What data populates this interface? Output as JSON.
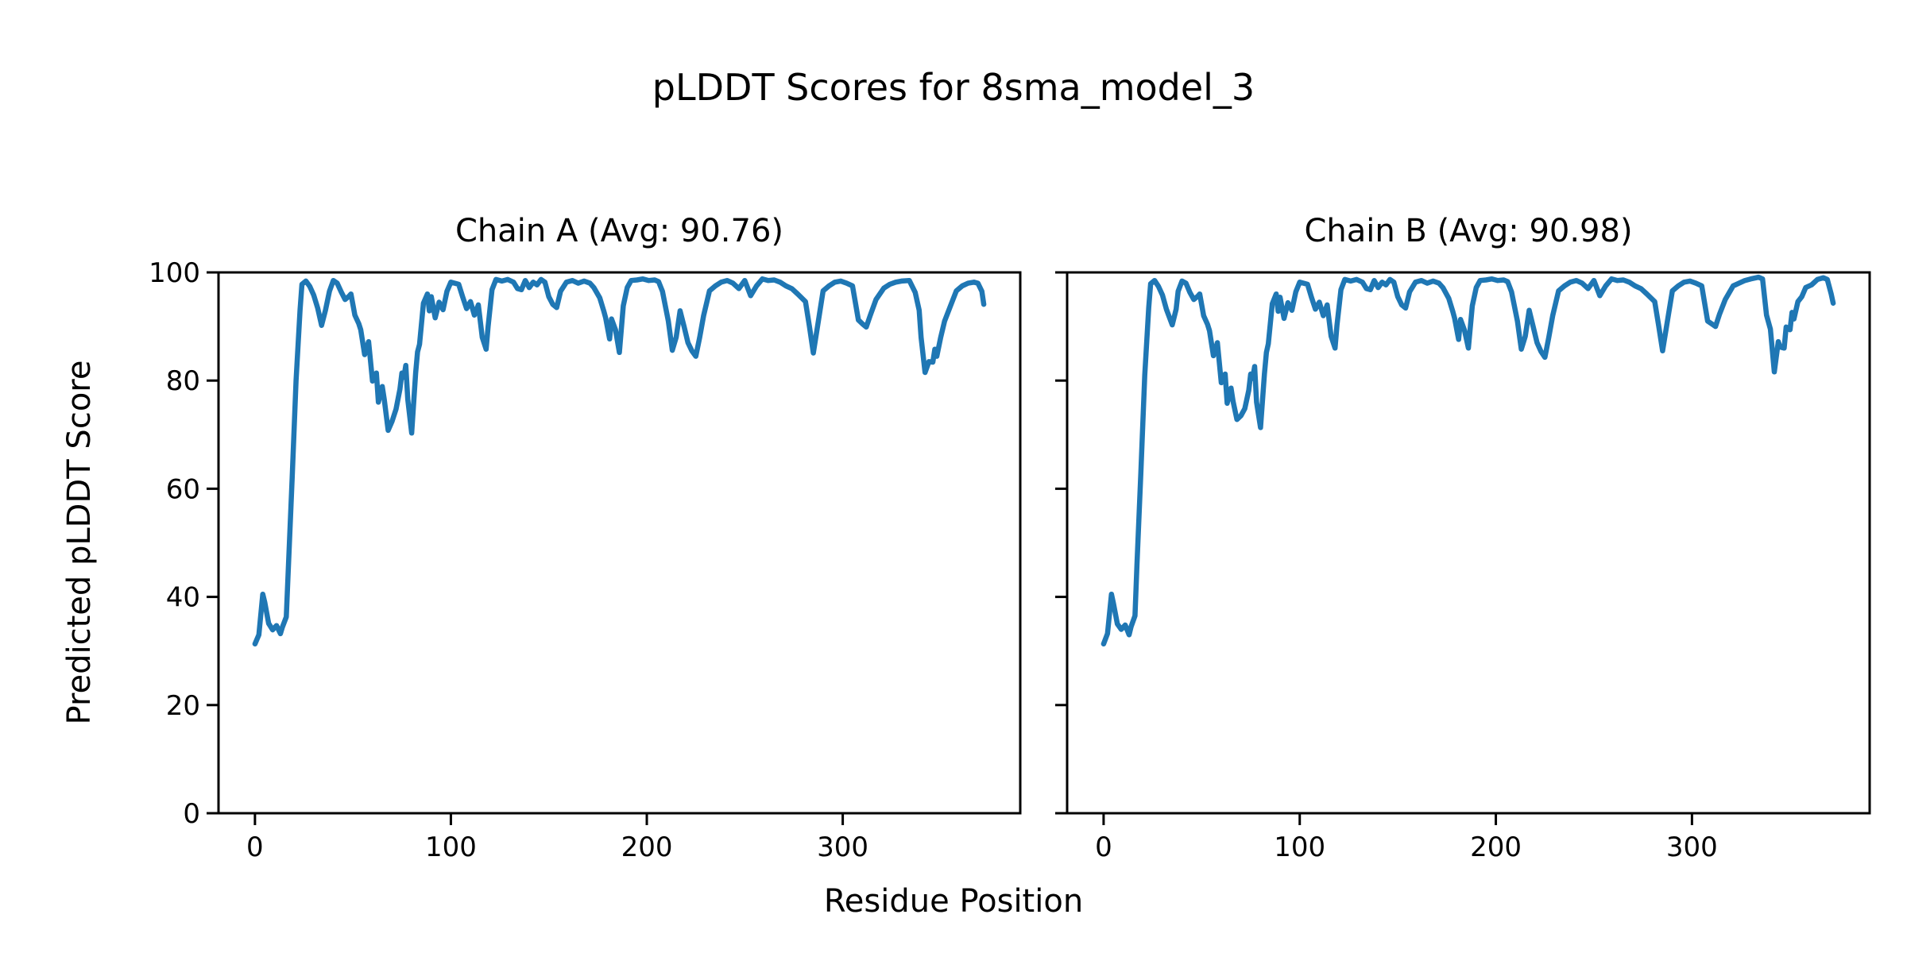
{
  "figure": {
    "suptitle": "pLDDT Scores for 8sma_model_3",
    "xlabel": "Residue Position",
    "ylabel": "Predicted pLDDT Score",
    "background_color": "#ffffff",
    "text_color": "#000000",
    "axis_color": "#000000"
  },
  "chart_data": [
    {
      "type": "line",
      "chain": "A",
      "title": "Chain A (Avg: 90.76)",
      "average_plddt": 90.76,
      "line_color": "#1f77b4",
      "xlabel": "Residue Position",
      "ylabel": "Predicted pLDDT Score",
      "xlim": [
        -18.6,
        390.6
      ],
      "ylim": [
        0,
        100
      ],
      "xticks": [
        0,
        100,
        200,
        300
      ],
      "yticks": [
        0,
        20,
        40,
        60,
        80,
        100
      ],
      "show_ytick_labels": true,
      "grid": false,
      "legend": false,
      "points": [
        [
          0,
          31.3
        ],
        [
          2,
          33.0
        ],
        [
          4,
          40.5
        ],
        [
          5,
          39.0
        ],
        [
          7,
          35.1
        ],
        [
          9,
          33.9
        ],
        [
          11,
          34.7
        ],
        [
          13,
          33.2
        ],
        [
          14,
          34.4
        ],
        [
          16,
          36.3
        ],
        [
          17,
          45.0
        ],
        [
          19,
          62.0
        ],
        [
          21,
          80.0
        ],
        [
          23,
          93.0
        ],
        [
          24,
          97.8
        ],
        [
          26,
          98.4
        ],
        [
          28,
          97.4
        ],
        [
          30,
          95.8
        ],
        [
          32,
          93.4
        ],
        [
          34,
          90.2
        ],
        [
          36,
          93.0
        ],
        [
          38,
          96.5
        ],
        [
          40,
          98.5
        ],
        [
          42,
          98.0
        ],
        [
          44,
          96.4
        ],
        [
          46,
          95.0
        ],
        [
          48,
          95.6
        ],
        [
          49,
          96.0
        ],
        [
          51,
          92.1
        ],
        [
          53,
          90.5
        ],
        [
          54,
          89.4
        ],
        [
          56,
          84.8
        ],
        [
          58,
          87.2
        ],
        [
          60,
          79.9
        ],
        [
          62,
          81.4
        ],
        [
          63,
          76.0
        ],
        [
          65,
          78.9
        ],
        [
          66,
          76.5
        ],
        [
          68,
          70.8
        ],
        [
          70,
          72.5
        ],
        [
          72,
          74.7
        ],
        [
          74,
          78.4
        ],
        [
          75,
          81.4
        ],
        [
          76,
          80.6
        ],
        [
          77,
          82.8
        ],
        [
          78,
          76.5
        ],
        [
          80,
          70.3
        ],
        [
          82,
          81.4
        ],
        [
          83,
          85.3
        ],
        [
          84,
          86.7
        ],
        [
          86,
          94.3
        ],
        [
          88,
          96.0
        ],
        [
          89,
          92.9
        ],
        [
          90,
          95.5
        ],
        [
          92,
          91.6
        ],
        [
          94,
          94.5
        ],
        [
          96,
          93.1
        ],
        [
          98,
          96.5
        ],
        [
          100,
          98.2
        ],
        [
          102,
          98.0
        ],
        [
          104,
          97.8
        ],
        [
          106,
          95.5
        ],
        [
          108,
          93.3
        ],
        [
          110,
          94.6
        ],
        [
          112,
          92.1
        ],
        [
          114,
          94.0
        ],
        [
          116,
          88.0
        ],
        [
          118,
          85.8
        ],
        [
          119,
          90.0
        ],
        [
          121,
          96.8
        ],
        [
          123,
          98.7
        ],
        [
          126,
          98.4
        ],
        [
          129,
          98.7
        ],
        [
          132,
          98.2
        ],
        [
          134,
          97.0
        ],
        [
          136,
          96.8
        ],
        [
          138,
          98.5
        ],
        [
          140,
          97.2
        ],
        [
          142,
          98.2
        ],
        [
          144,
          97.7
        ],
        [
          146,
          98.7
        ],
        [
          148,
          98.2
        ],
        [
          150,
          95.5
        ],
        [
          152,
          94.1
        ],
        [
          154,
          93.5
        ],
        [
          156,
          96.5
        ],
        [
          159,
          98.2
        ],
        [
          162,
          98.5
        ],
        [
          165,
          98.0
        ],
        [
          168,
          98.4
        ],
        [
          171,
          98.0
        ],
        [
          173,
          97.2
        ],
        [
          176,
          95.3
        ],
        [
          178,
          92.9
        ],
        [
          179,
          91.6
        ],
        [
          181,
          87.7
        ],
        [
          182,
          91.4
        ],
        [
          184,
          89.4
        ],
        [
          186,
          85.2
        ],
        [
          188,
          93.8
        ],
        [
          190,
          97.2
        ],
        [
          192,
          98.5
        ],
        [
          195,
          98.6
        ],
        [
          198,
          98.8
        ],
        [
          201,
          98.5
        ],
        [
          204,
          98.6
        ],
        [
          206,
          98.3
        ],
        [
          208,
          96.5
        ],
        [
          211,
          91.0
        ],
        [
          213,
          85.6
        ],
        [
          215,
          88.0
        ],
        [
          217,
          92.9
        ],
        [
          219,
          90.0
        ],
        [
          221,
          87.0
        ],
        [
          223,
          85.5
        ],
        [
          225,
          84.5
        ],
        [
          227,
          88.0
        ],
        [
          229,
          92.0
        ],
        [
          232,
          96.6
        ],
        [
          235,
          97.5
        ],
        [
          238,
          98.2
        ],
        [
          241,
          98.5
        ],
        [
          244,
          98.0
        ],
        [
          247,
          97.0
        ],
        [
          250,
          98.5
        ],
        [
          253,
          95.7
        ],
        [
          256,
          97.5
        ],
        [
          259,
          98.8
        ],
        [
          262,
          98.5
        ],
        [
          265,
          98.6
        ],
        [
          268,
          98.2
        ],
        [
          271,
          97.5
        ],
        [
          274,
          97.0
        ],
        [
          277,
          96.0
        ],
        [
          281,
          94.6
        ],
        [
          283,
          90.0
        ],
        [
          285,
          85.1
        ],
        [
          288,
          92.0
        ],
        [
          290,
          96.6
        ],
        [
          293,
          97.5
        ],
        [
          296,
          98.2
        ],
        [
          299,
          98.4
        ],
        [
          302,
          98.0
        ],
        [
          305,
          97.5
        ],
        [
          308,
          91.2
        ],
        [
          310,
          90.5
        ],
        [
          312,
          89.9
        ],
        [
          314,
          92.0
        ],
        [
          317,
          95.0
        ],
        [
          321,
          97.1
        ],
        [
          324,
          97.8
        ],
        [
          327,
          98.2
        ],
        [
          330,
          98.4
        ],
        [
          334,
          98.5
        ],
        [
          337,
          96.3
        ],
        [
          339,
          93.0
        ],
        [
          340,
          88.0
        ],
        [
          342,
          81.5
        ],
        [
          344,
          83.5
        ],
        [
          346,
          83.4
        ],
        [
          347,
          85.8
        ],
        [
          348,
          84.5
        ],
        [
          350,
          88.0
        ],
        [
          352,
          91.0
        ],
        [
          355,
          93.8
        ],
        [
          358,
          96.6
        ],
        [
          361,
          97.5
        ],
        [
          364,
          98.0
        ],
        [
          367,
          98.2
        ],
        [
          369,
          98.0
        ],
        [
          371,
          96.5
        ],
        [
          372,
          94.1
        ]
      ]
    },
    {
      "type": "line",
      "chain": "B",
      "title": "Chain B (Avg: 90.98)",
      "average_plddt": 90.98,
      "line_color": "#1f77b4",
      "xlabel": "Residue Position",
      "ylabel": "Predicted pLDDT Score",
      "xlim": [
        -18.6,
        390.6
      ],
      "ylim": [
        0,
        100
      ],
      "xticks": [
        0,
        100,
        200,
        300
      ],
      "yticks": [
        0,
        20,
        40,
        60,
        80,
        100
      ],
      "show_ytick_labels": false,
      "grid": false,
      "legend": false,
      "points": [
        [
          0,
          31.3
        ],
        [
          2,
          33.2
        ],
        [
          4,
          40.5
        ],
        [
          5,
          38.8
        ],
        [
          7,
          35.0
        ],
        [
          9,
          34.0
        ],
        [
          11,
          34.8
        ],
        [
          13,
          33.0
        ],
        [
          14,
          34.5
        ],
        [
          16,
          36.5
        ],
        [
          17,
          46.0
        ],
        [
          19,
          63.0
        ],
        [
          21,
          81.0
        ],
        [
          23,
          93.5
        ],
        [
          24,
          97.9
        ],
        [
          26,
          98.5
        ],
        [
          28,
          97.4
        ],
        [
          30,
          95.8
        ],
        [
          32,
          93.2
        ],
        [
          35,
          90.3
        ],
        [
          37,
          93.2
        ],
        [
          38,
          96.5
        ],
        [
          40,
          98.4
        ],
        [
          42,
          98.0
        ],
        [
          44,
          96.3
        ],
        [
          46,
          95.0
        ],
        [
          48,
          95.6
        ],
        [
          49,
          96.0
        ],
        [
          51,
          92.0
        ],
        [
          53,
          90.4
        ],
        [
          54,
          89.2
        ],
        [
          56,
          84.6
        ],
        [
          58,
          87.0
        ],
        [
          60,
          79.6
        ],
        [
          62,
          81.2
        ],
        [
          63,
          75.8
        ],
        [
          65,
          78.6
        ],
        [
          66,
          76.2
        ],
        [
          68,
          72.8
        ],
        [
          70,
          73.5
        ],
        [
          72,
          74.8
        ],
        [
          74,
          78.2
        ],
        [
          75,
          81.2
        ],
        [
          76,
          80.4
        ],
        [
          77,
          82.6
        ],
        [
          78,
          76.0
        ],
        [
          80,
          71.3
        ],
        [
          82,
          81.2
        ],
        [
          83,
          85.2
        ],
        [
          84,
          86.8
        ],
        [
          86,
          94.2
        ],
        [
          88,
          96.0
        ],
        [
          89,
          92.8
        ],
        [
          90,
          95.4
        ],
        [
          92,
          91.5
        ],
        [
          94,
          94.4
        ],
        [
          96,
          93.0
        ],
        [
          98,
          96.4
        ],
        [
          100,
          98.2
        ],
        [
          102,
          98.0
        ],
        [
          104,
          97.8
        ],
        [
          106,
          95.4
        ],
        [
          108,
          93.2
        ],
        [
          110,
          94.5
        ],
        [
          112,
          92.0
        ],
        [
          114,
          94.0
        ],
        [
          116,
          88.2
        ],
        [
          118,
          86.0
        ],
        [
          119,
          90.2
        ],
        [
          121,
          96.8
        ],
        [
          123,
          98.7
        ],
        [
          126,
          98.4
        ],
        [
          129,
          98.7
        ],
        [
          132,
          98.2
        ],
        [
          134,
          97.0
        ],
        [
          136,
          96.8
        ],
        [
          138,
          98.5
        ],
        [
          140,
          97.2
        ],
        [
          142,
          98.2
        ],
        [
          144,
          97.7
        ],
        [
          146,
          98.7
        ],
        [
          148,
          98.2
        ],
        [
          150,
          95.5
        ],
        [
          152,
          94.0
        ],
        [
          154,
          93.4
        ],
        [
          156,
          96.4
        ],
        [
          159,
          98.2
        ],
        [
          162,
          98.5
        ],
        [
          165,
          98.0
        ],
        [
          168,
          98.4
        ],
        [
          171,
          98.0
        ],
        [
          173,
          97.2
        ],
        [
          176,
          95.2
        ],
        [
          178,
          92.8
        ],
        [
          179,
          91.5
        ],
        [
          181,
          87.6
        ],
        [
          182,
          91.3
        ],
        [
          184,
          89.3
        ],
        [
          186,
          86.0
        ],
        [
          188,
          93.8
        ],
        [
          190,
          97.2
        ],
        [
          192,
          98.5
        ],
        [
          195,
          98.6
        ],
        [
          198,
          98.8
        ],
        [
          201,
          98.5
        ],
        [
          204,
          98.6
        ],
        [
          206,
          98.3
        ],
        [
          208,
          96.4
        ],
        [
          211,
          91.0
        ],
        [
          213,
          85.8
        ],
        [
          215,
          88.2
        ],
        [
          217,
          93.0
        ],
        [
          219,
          90.0
        ],
        [
          221,
          87.0
        ],
        [
          223,
          85.4
        ],
        [
          225,
          84.3
        ],
        [
          227,
          88.0
        ],
        [
          229,
          92.0
        ],
        [
          232,
          96.6
        ],
        [
          235,
          97.5
        ],
        [
          238,
          98.2
        ],
        [
          241,
          98.5
        ],
        [
          244,
          98.0
        ],
        [
          247,
          97.0
        ],
        [
          250,
          98.5
        ],
        [
          253,
          95.7
        ],
        [
          256,
          97.5
        ],
        [
          259,
          98.8
        ],
        [
          262,
          98.5
        ],
        [
          265,
          98.6
        ],
        [
          268,
          98.2
        ],
        [
          271,
          97.5
        ],
        [
          274,
          97.0
        ],
        [
          277,
          96.0
        ],
        [
          281,
          94.6
        ],
        [
          283,
          90.2
        ],
        [
          285,
          85.5
        ],
        [
          288,
          92.2
        ],
        [
          290,
          96.6
        ],
        [
          293,
          97.5
        ],
        [
          296,
          98.2
        ],
        [
          299,
          98.4
        ],
        [
          302,
          98.0
        ],
        [
          305,
          97.5
        ],
        [
          308,
          91.0
        ],
        [
          310,
          90.5
        ],
        [
          312,
          90.0
        ],
        [
          314,
          92.2
        ],
        [
          317,
          95.0
        ],
        [
          321,
          97.5
        ],
        [
          324,
          98.0
        ],
        [
          327,
          98.5
        ],
        [
          330,
          98.8
        ],
        [
          334,
          99.1
        ],
        [
          336,
          98.8
        ],
        [
          338,
          92.1
        ],
        [
          340,
          89.5
        ],
        [
          342,
          81.6
        ],
        [
          344,
          87.2
        ],
        [
          345,
          86.2
        ],
        [
          347,
          86.0
        ],
        [
          348,
          89.9
        ],
        [
          350,
          89.4
        ],
        [
          351,
          92.6
        ],
        [
          352,
          91.4
        ],
        [
          354,
          94.6
        ],
        [
          356,
          95.5
        ],
        [
          358,
          97.2
        ],
        [
          361,
          97.7
        ],
        [
          364,
          98.7
        ],
        [
          367,
          99.0
        ],
        [
          369,
          98.7
        ],
        [
          371,
          96.0
        ],
        [
          372,
          94.3
        ]
      ]
    }
  ]
}
